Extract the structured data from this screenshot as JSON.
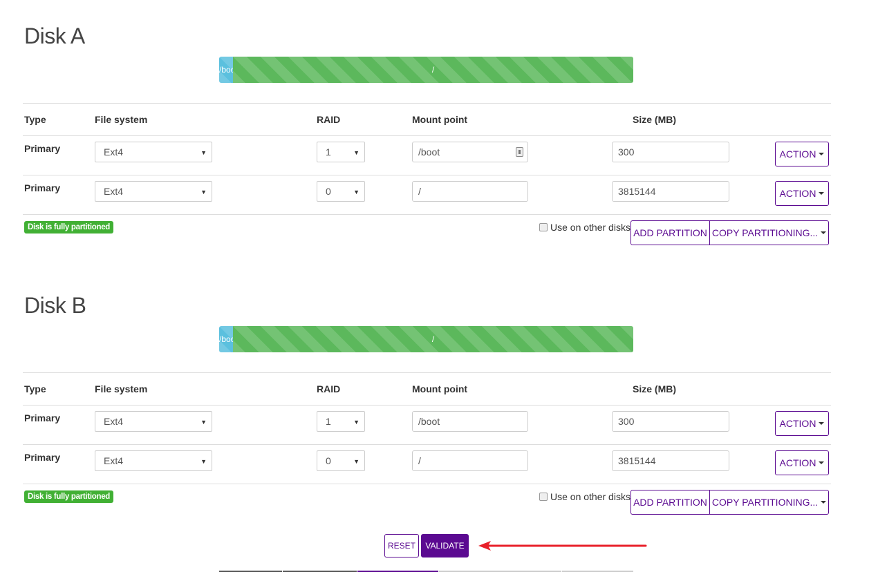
{
  "colors": {
    "accent": "#5b0a91",
    "boot_segment": "#5bc0de",
    "root_segment": "#5cb85c",
    "badge": "#41b034",
    "arrow": "#e8202a"
  },
  "table_headers": {
    "type": "Type",
    "filesystem": "File system",
    "raid": "RAID",
    "mount": "Mount point",
    "size": "Size (MB)"
  },
  "disks": [
    {
      "title": "Disk A",
      "bar": [
        {
          "label": "/boot",
          "size": 300,
          "color": "#5bc0de"
        },
        {
          "label": "/",
          "size": 3815144,
          "color": "#5cb85c"
        }
      ],
      "rows": [
        {
          "type": "Primary",
          "filesystem": "Ext4",
          "raid": "1",
          "mount": "/boot",
          "size": "300",
          "action": "ACTION",
          "mount_icon": "password-manager-icon"
        },
        {
          "type": "Primary",
          "filesystem": "Ext4",
          "raid": "0",
          "mount": "/",
          "size": "3815144",
          "action": "ACTION"
        }
      ],
      "status": "Disk is fully partitioned",
      "use_other": "Use on other disks",
      "use_other_checked": false,
      "add_partition": "ADD PARTITION",
      "copy_partitioning": "COPY PARTITIONING..."
    },
    {
      "title": "Disk B",
      "bar": [
        {
          "label": "/boot",
          "size": 300,
          "color": "#5bc0de"
        },
        {
          "label": "/",
          "size": 3815144,
          "color": "#5cb85c"
        }
      ],
      "rows": [
        {
          "type": "Primary",
          "filesystem": "Ext4",
          "raid": "1",
          "mount": "/boot",
          "size": "300",
          "action": "ACTION"
        },
        {
          "type": "Primary",
          "filesystem": "Ext4",
          "raid": "0",
          "mount": "/",
          "size": "3815144",
          "action": "ACTION"
        }
      ],
      "status": "Disk is fully partitioned",
      "use_other": "Use on other disks",
      "use_other_checked": false,
      "add_partition": "ADD PARTITION",
      "copy_partitioning": "COPY PARTITIONING..."
    }
  ],
  "actions": {
    "reset": "RESET",
    "validate": "VALIDATE"
  },
  "stepper_colors": [
    "#555555",
    "#555555",
    "#5b0a91",
    "#cccccc",
    "#cccccc"
  ]
}
